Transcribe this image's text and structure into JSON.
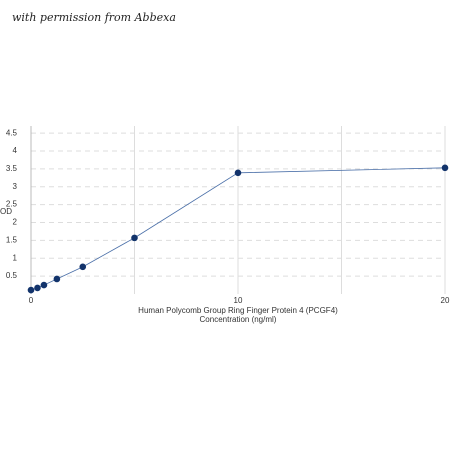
{
  "watermark": "with permission from Abbexa",
  "chart_data": {
    "type": "line",
    "ylabel": "OD",
    "xlabel": [
      "Human Polycomb Group Ring Finger Protein 4 (PCGF4)",
      "Concentration (ng/ml)"
    ],
    "x": [
      0,
      0.3125,
      0.625,
      1.25,
      2.5,
      5,
      10,
      20
    ],
    "series": [
      {
        "color": "#4a6fa8",
        "marker_color": "#12336b",
        "values": [
          0.11,
          0.17,
          0.25,
          0.42,
          0.76,
          1.57,
          3.39,
          3.53
        ]
      }
    ],
    "xlim": [
      0,
      20
    ],
    "ylim": [
      0,
      4.7
    ],
    "xticks": [
      0,
      10,
      20
    ],
    "x_grid_lines": [
      5,
      10,
      15,
      20
    ],
    "yticks": [
      0.5,
      1,
      1.5,
      2,
      2.5,
      3,
      3.5,
      4,
      4.5
    ],
    "grid": true
  }
}
